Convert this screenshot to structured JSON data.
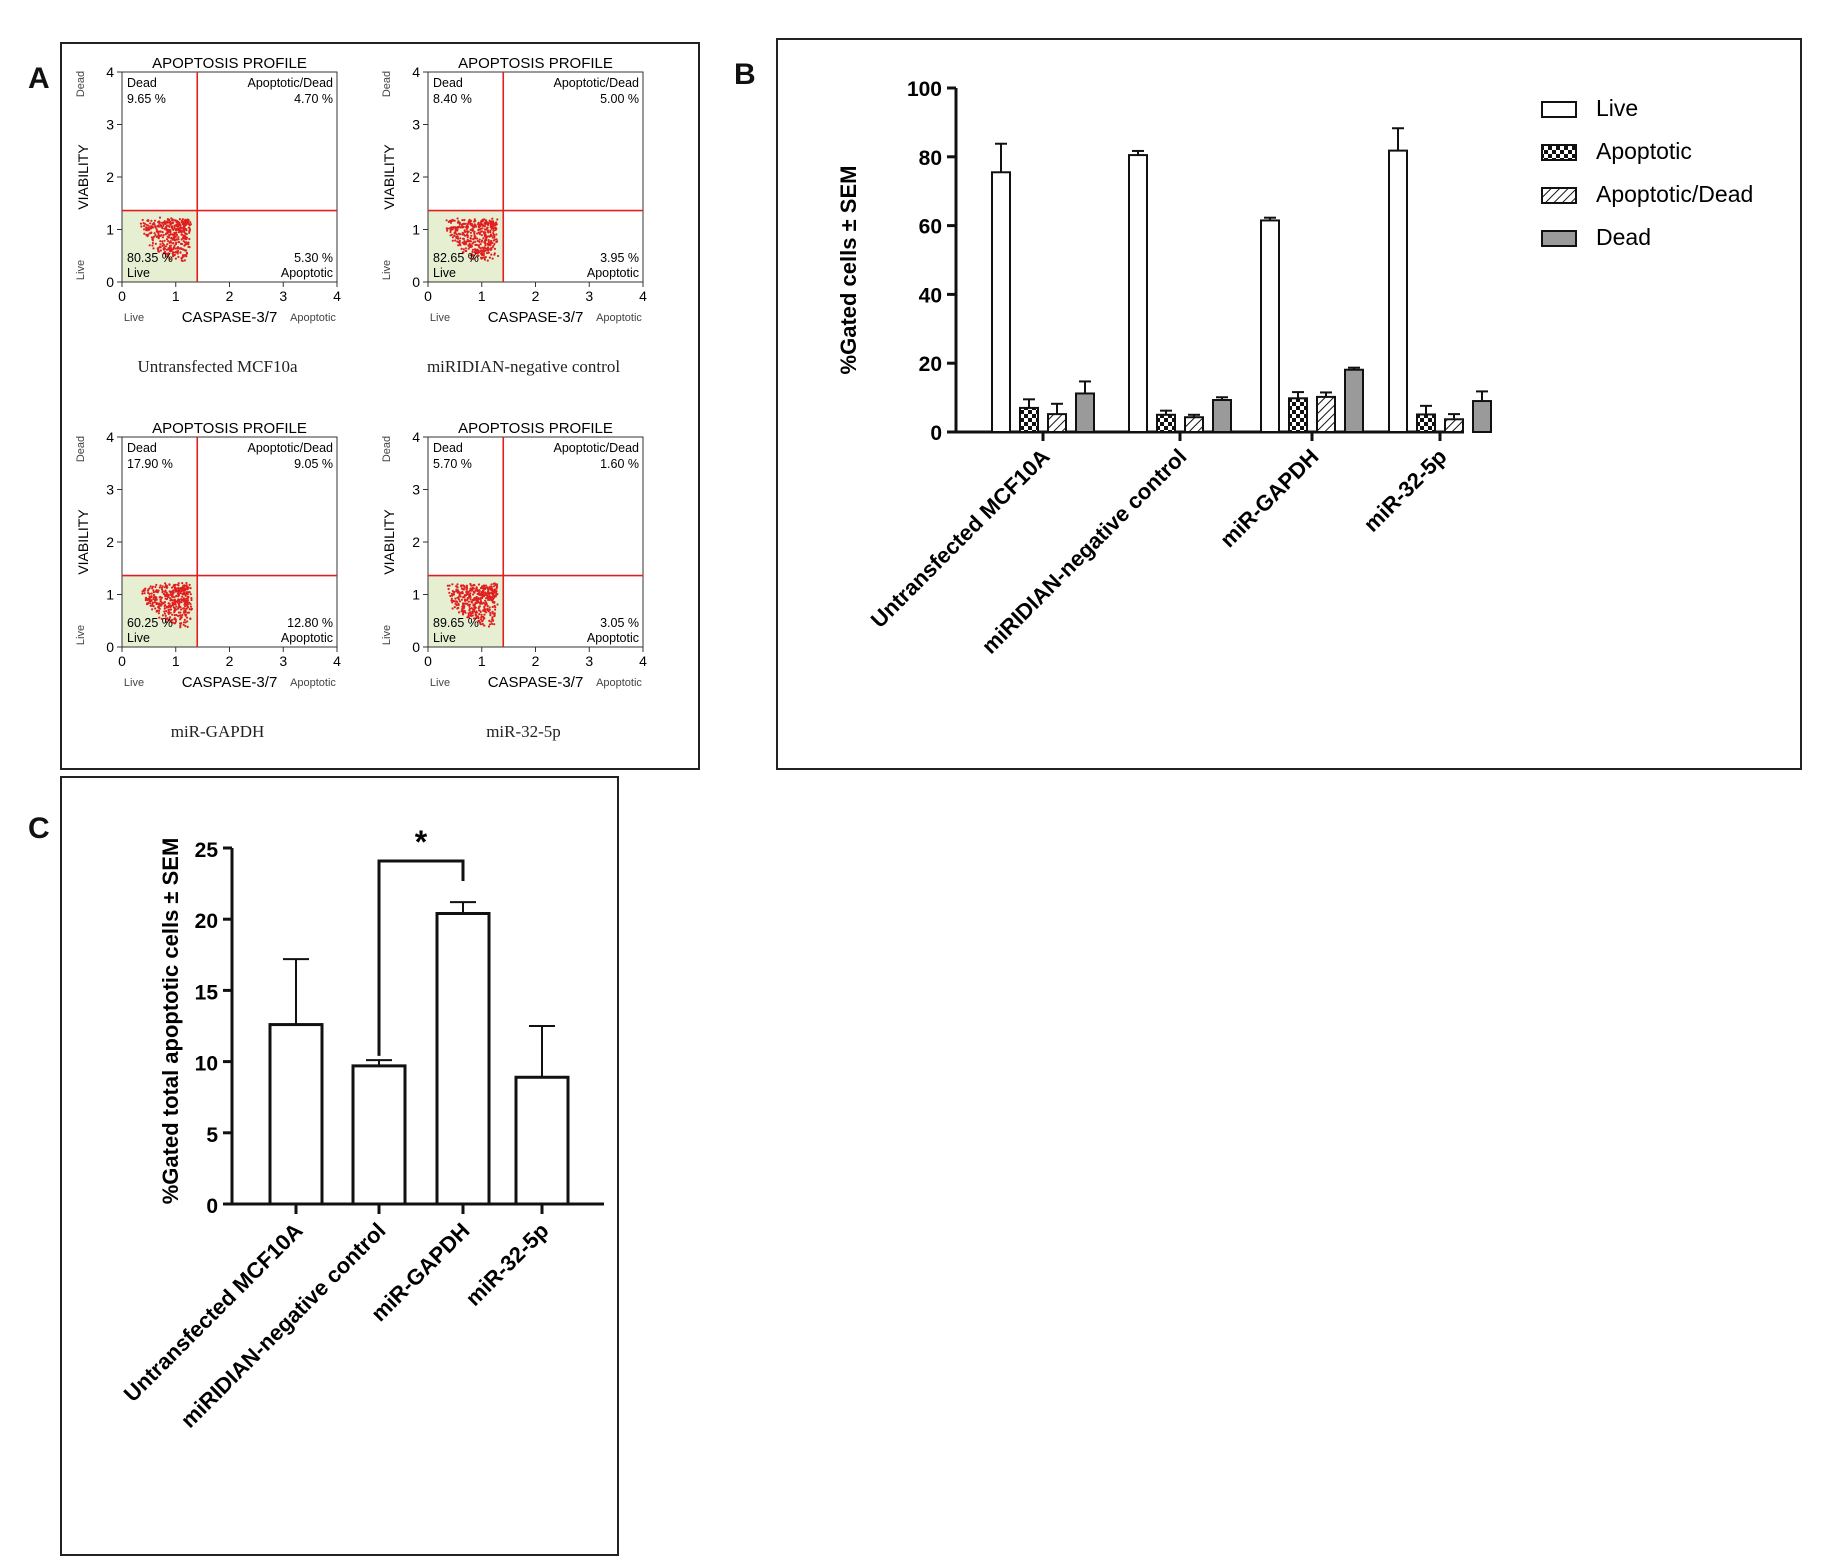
{
  "panels": {
    "A": {
      "letter": "A"
    },
    "B": {
      "letter": "B"
    },
    "C": {
      "letter": "C"
    }
  },
  "flow": {
    "title": "APOPTOSIS PROFILE",
    "y_label": "VIABILITY",
    "x_label": "CASPASE-3/7",
    "y_top_tag": "Dead",
    "y_bottom_tag": "Live",
    "x_left_tag": "Live",
    "x_right_tag": "Apoptotic",
    "quadrant_labels": {
      "dead": "Dead",
      "apoptotic_dead": "Apoptotic/Dead",
      "live": "Live",
      "apoptotic": "Apoptotic"
    },
    "ticks": [
      "0",
      "1",
      "2",
      "3",
      "4"
    ],
    "plots": [
      {
        "caption": "Untransfected MCF10a",
        "dead": "9.65 %",
        "apoptotic_dead": "4.70 %",
        "live": "80.35 %",
        "apoptotic": "5.30 %"
      },
      {
        "caption": "miRIDIAN-negative  control",
        "dead": "8.40 %",
        "apoptotic_dead": "5.00 %",
        "live": "82.65 %",
        "apoptotic": "3.95 %"
      },
      {
        "caption": "miR-GAPDH",
        "dead": "17.90 %",
        "apoptotic_dead": "9.05 %",
        "live": "60.25 %",
        "apoptotic": "12.80 %"
      },
      {
        "caption": "miR-32-5p",
        "dead": "5.70 %",
        "apoptotic_dead": "1.60 %",
        "live": "89.65 %",
        "apoptotic": "3.05 %"
      }
    ]
  },
  "chart_data": [
    {
      "panel": "B",
      "type": "bar",
      "ylabel": "%Gated cells ± SEM",
      "ylim": [
        0,
        100
      ],
      "yticks": [
        0,
        20,
        40,
        60,
        80,
        100
      ],
      "categories": [
        "Untransfected MCF10A",
        "miRIDIAN-negative control",
        "miR-GAPDH",
        "miR-32-5p"
      ],
      "series": [
        {
          "name": "Live",
          "values": [
            75.5,
            80.5,
            61.5,
            81.8
          ],
          "errors": [
            8.3,
            1.2,
            0.8,
            6.5
          ],
          "fill": "#ffffff",
          "pattern": "none"
        },
        {
          "name": "Apoptotic",
          "values": [
            7.0,
            5.0,
            9.8,
            5.1
          ],
          "errors": [
            2.5,
            1.2,
            1.8,
            2.5
          ],
          "fill": "#ffffff",
          "pattern": "checker"
        },
        {
          "name": "Apoptotic/Dead",
          "values": [
            5.2,
            4.3,
            10.2,
            3.7
          ],
          "errors": [
            3.0,
            0.7,
            1.3,
            1.5
          ],
          "fill": "#ffffff",
          "pattern": "hatch"
        },
        {
          "name": "Dead",
          "values": [
            11.2,
            9.3,
            18.1,
            9.0
          ],
          "errors": [
            3.5,
            0.8,
            0.6,
            2.8
          ],
          "fill": "#9a9a9a",
          "pattern": "none"
        }
      ]
    },
    {
      "panel": "C",
      "type": "bar",
      "ylabel": "%Gated total apoptotic cells ± SEM",
      "ylim": [
        0,
        25
      ],
      "yticks": [
        0,
        5,
        10,
        15,
        20,
        25
      ],
      "categories": [
        "Untransfected MCF10A",
        "miRIDIAN-negative control",
        "miR-GAPDH",
        "miR-32-5p"
      ],
      "values": [
        12.6,
        9.7,
        20.4,
        8.9
      ],
      "errors": [
        4.6,
        0.4,
        0.8,
        3.6
      ],
      "significance": {
        "from": 1,
        "to": 2,
        "label": "*"
      }
    }
  ]
}
